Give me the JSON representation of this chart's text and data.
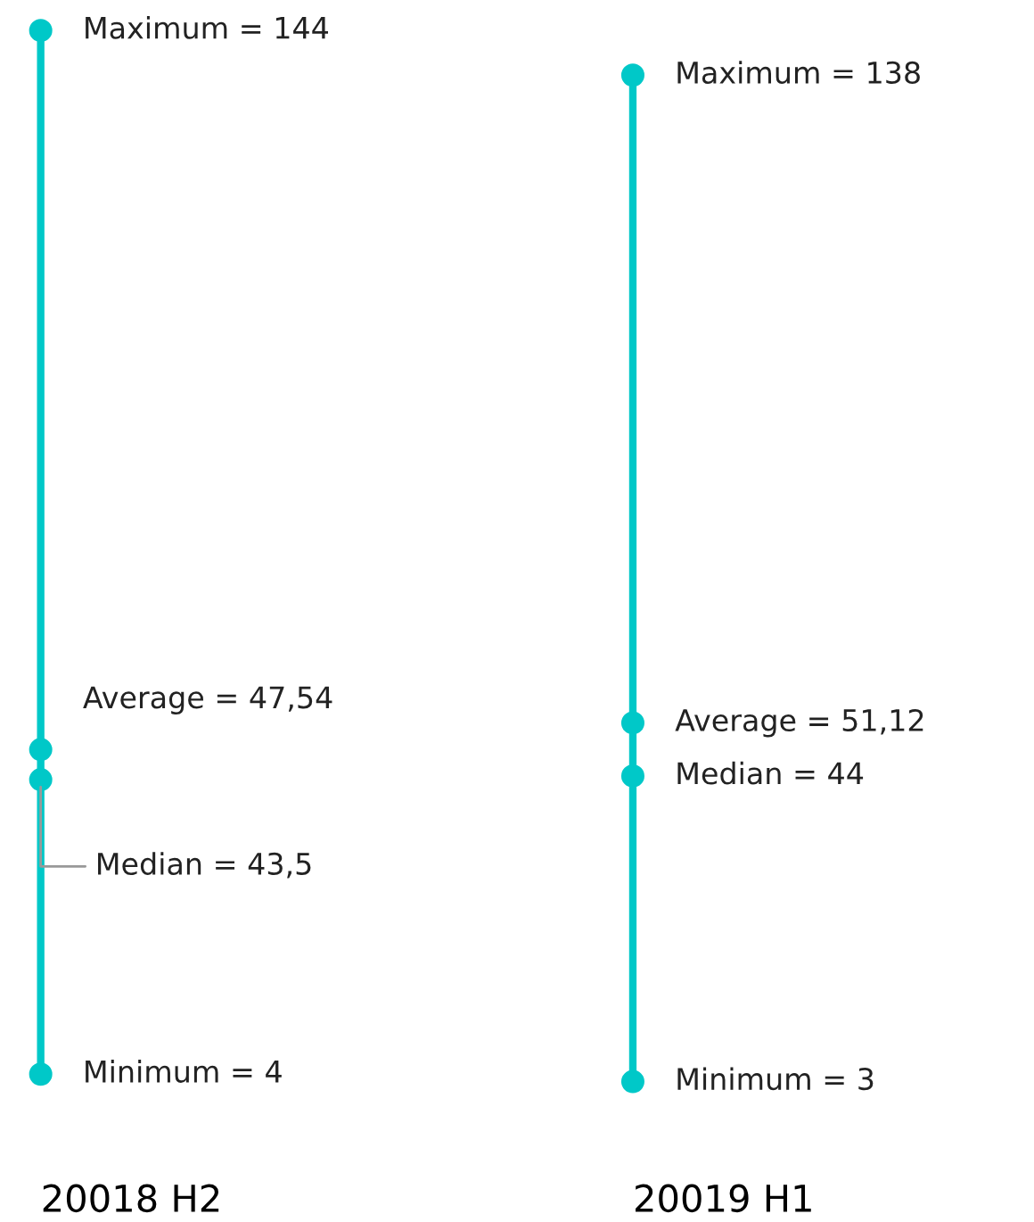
{
  "chart_data": {
    "type": "scatter",
    "categories": [
      "20018 H2",
      "20019 H1"
    ],
    "tick_labels": "x",
    "grid": false,
    "legend": false,
    "marker": "circle",
    "series": [
      {
        "color": "#00c8c8",
        "values": [
          144,
          138
        ],
        "value_labels": [
          "Maximum = 144",
          "Maximum = 138"
        ]
      },
      {
        "color": "#00c8c8",
        "values": [
          47.54,
          51.12
        ],
        "value_labels": [
          "Average = 47,54",
          "Average = 51,12"
        ]
      },
      {
        "color": "#00c8c8",
        "values": [
          43.5,
          44
        ],
        "value_labels": [
          "Median = 43,5",
          "Median = 44"
        ]
      },
      {
        "color": "#00c8c8",
        "values": [
          4,
          3
        ],
        "value_labels": [
          "Minimum = 4",
          "Minimum = 3"
        ]
      }
    ]
  }
}
